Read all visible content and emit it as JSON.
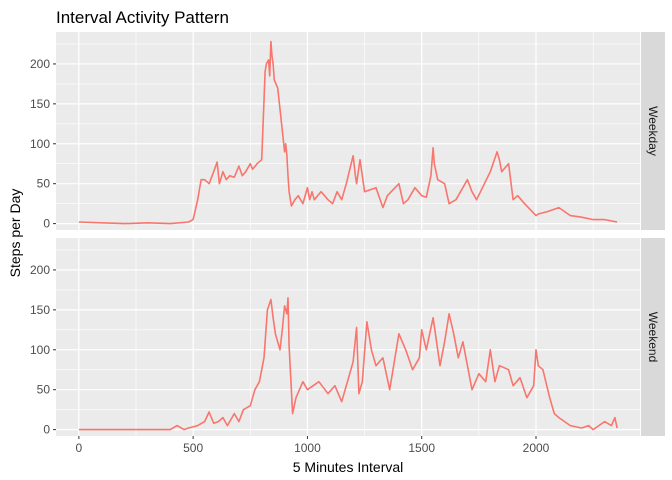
{
  "chart_data": {
    "type": "line",
    "title": "Interval Activity Pattern",
    "xlabel": "5 Minutes Interval",
    "ylabel": "Steps per Day",
    "xlim": [
      -100,
      2455
    ],
    "ylim": [
      -8,
      240
    ],
    "x_ticks": [
      0,
      500,
      1000,
      1500,
      2000
    ],
    "y_ticks": [
      0,
      50,
      100,
      150,
      200
    ],
    "grid": true,
    "line_color": "#F8766D",
    "panel_background": "#EBEBEB",
    "strip_background": "#D9D9D9",
    "facets": [
      {
        "label": "Weekday",
        "x": [
          0,
          100,
          200,
          300,
          400,
          480,
          500,
          520,
          535,
          550,
          570,
          590,
          605,
          615,
          630,
          645,
          660,
          680,
          700,
          715,
          730,
          750,
          760,
          780,
          800,
          815,
          820,
          830,
          835,
          840,
          845,
          850,
          855,
          870,
          900,
          905,
          910,
          915,
          920,
          930,
          945,
          960,
          980,
          1000,
          1010,
          1020,
          1030,
          1060,
          1090,
          1110,
          1130,
          1150,
          1170,
          1200,
          1210,
          1215,
          1230,
          1250,
          1300,
          1330,
          1350,
          1400,
          1420,
          1440,
          1470,
          1500,
          1520,
          1540,
          1550,
          1555,
          1570,
          1600,
          1620,
          1650,
          1700,
          1720,
          1740,
          1800,
          1830,
          1840,
          1850,
          1880,
          1900,
          1920,
          1950,
          2000,
          2010,
          2050,
          2100,
          2150,
          2200,
          2250,
          2300,
          2355
        ],
        "y": [
          2,
          1,
          0,
          1,
          0,
          2,
          5,
          30,
          55,
          55,
          50,
          65,
          77,
          50,
          65,
          55,
          60,
          58,
          72,
          60,
          65,
          75,
          68,
          75,
          80,
          190,
          200,
          205,
          185,
          228,
          210,
          200,
          180,
          170,
          90,
          100,
          85,
          60,
          40,
          22,
          30,
          35,
          25,
          45,
          30,
          40,
          30,
          40,
          30,
          25,
          40,
          30,
          50,
          85,
          60,
          50,
          80,
          40,
          45,
          20,
          35,
          50,
          25,
          30,
          45,
          35,
          33,
          60,
          95,
          75,
          55,
          50,
          25,
          30,
          55,
          40,
          30,
          65,
          90,
          80,
          65,
          75,
          30,
          35,
          25,
          10,
          12,
          15,
          20,
          10,
          8,
          5,
          5,
          2
        ]
      },
      {
        "label": "Weekend",
        "x": [
          0,
          100,
          200,
          300,
          400,
          430,
          460,
          480,
          520,
          550,
          570,
          590,
          610,
          630,
          650,
          680,
          700,
          720,
          750,
          770,
          790,
          810,
          825,
          840,
          850,
          860,
          880,
          890,
          900,
          910,
          915,
          920,
          935,
          950,
          980,
          1000,
          1050,
          1090,
          1120,
          1150,
          1180,
          1200,
          1215,
          1225,
          1240,
          1260,
          1280,
          1300,
          1330,
          1360,
          1400,
          1430,
          1460,
          1490,
          1500,
          1520,
          1550,
          1580,
          1600,
          1620,
          1640,
          1660,
          1680,
          1720,
          1750,
          1780,
          1800,
          1820,
          1840,
          1880,
          1900,
          1930,
          1960,
          1990,
          2000,
          2010,
          2030,
          2060,
          2080,
          2100,
          2150,
          2200,
          2230,
          2250,
          2300,
          2330,
          2345,
          2355
        ],
        "y": [
          0,
          0,
          0,
          0,
          0,
          5,
          0,
          2,
          5,
          10,
          22,
          8,
          10,
          15,
          5,
          20,
          10,
          25,
          30,
          50,
          60,
          90,
          150,
          163,
          140,
          120,
          100,
          125,
          155,
          145,
          165,
          105,
          20,
          40,
          60,
          50,
          60,
          45,
          55,
          35,
          65,
          85,
          128,
          45,
          60,
          135,
          100,
          80,
          90,
          50,
          120,
          100,
          75,
          90,
          125,
          100,
          140,
          80,
          110,
          145,
          120,
          90,
          110,
          50,
          70,
          60,
          100,
          60,
          80,
          75,
          55,
          65,
          40,
          55,
          100,
          80,
          75,
          40,
          20,
          15,
          5,
          2,
          5,
          0,
          10,
          5,
          15,
          2
        ]
      }
    ]
  }
}
